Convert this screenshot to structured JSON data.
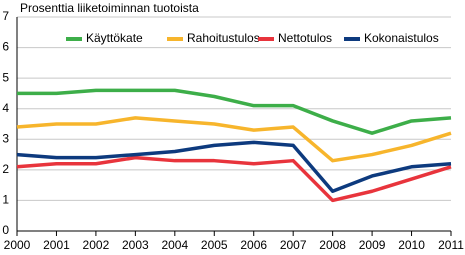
{
  "chart_data": {
    "type": "line",
    "title": "Prosenttia liiketoiminnan tuotoista",
    "x": [
      2000,
      2001,
      2002,
      2003,
      2004,
      2005,
      2006,
      2007,
      2008,
      2009,
      2010,
      2011
    ],
    "xlim": [
      2000,
      2011
    ],
    "xticks": [
      2000,
      2001,
      2002,
      2003,
      2004,
      2005,
      2006,
      2007,
      2008,
      2009,
      2010,
      2011
    ],
    "ylim": [
      0,
      7
    ],
    "yticks": [
      0,
      1,
      2,
      3,
      4,
      5,
      6,
      7
    ],
    "grid": true,
    "legend": "top",
    "series": [
      {
        "name": "Käyttökate",
        "color": "#3dae49",
        "values": [
          4.5,
          4.5,
          4.6,
          4.6,
          4.6,
          4.4,
          4.1,
          4.1,
          3.6,
          3.2,
          3.6,
          3.7
        ]
      },
      {
        "name": "Rahoitustulos",
        "color": "#f7b52c",
        "values": [
          3.4,
          3.5,
          3.5,
          3.7,
          3.6,
          3.5,
          3.3,
          3.4,
          2.3,
          2.5,
          2.8,
          3.2
        ]
      },
      {
        "name": "Nettotulos",
        "color": "#e8343c",
        "values": [
          2.1,
          2.2,
          2.2,
          2.4,
          2.3,
          2.3,
          2.2,
          2.3,
          1.0,
          1.3,
          1.7,
          2.1
        ]
      },
      {
        "name": "Kokonaistulos",
        "color": "#0d3a7e",
        "values": [
          2.5,
          2.4,
          2.4,
          2.5,
          2.6,
          2.8,
          2.9,
          2.8,
          1.3,
          1.8,
          2.1,
          2.2
        ]
      }
    ]
  }
}
